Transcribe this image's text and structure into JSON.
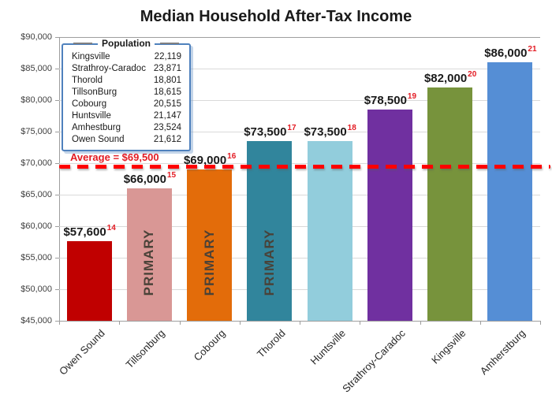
{
  "title": "Median Household After-Tax Income",
  "legend": {
    "title": "Population",
    "rows": [
      {
        "name": "Kingsville",
        "value": "22,119"
      },
      {
        "name": "Strathroy-Caradoc",
        "value": "23,871"
      },
      {
        "name": "Thorold",
        "value": "18,801"
      },
      {
        "name": "TillsonBurg",
        "value": "18,615"
      },
      {
        "name": "Cobourg",
        "value": "20,515"
      },
      {
        "name": "Huntsville",
        "value": "21,147"
      },
      {
        "name": "Amhestburg",
        "value": "23,524"
      },
      {
        "name": "Owen Sound",
        "value": "21,612"
      }
    ]
  },
  "chart_data": {
    "type": "bar",
    "title": "Median Household After-Tax Income",
    "categories": [
      "Owen Sound",
      "Tillsonburg",
      "Cobourg",
      "Thorold",
      "Huntsville",
      "Strathroy-Caradoc",
      "Kingsville",
      "Amherstburg"
    ],
    "values": [
      57600,
      66000,
      69000,
      73500,
      73500,
      78500,
      82000,
      86000
    ],
    "value_labels": [
      "$57,600",
      "$66,000",
      "$69,000",
      "$73,500",
      "$73,500",
      "$78,500",
      "$82,000",
      "$86,000"
    ],
    "footnotes": [
      "14",
      "15",
      "16",
      "17",
      "18",
      "19",
      "20",
      "21"
    ],
    "footnote_color": "#e31b23",
    "bar_colors": [
      "#c00000",
      "#d99795",
      "#e36c0a",
      "#31859c",
      "#92cddc",
      "#7030a0",
      "#77933c",
      "#558ed5"
    ],
    "primary_flags": [
      false,
      true,
      true,
      true,
      false,
      false,
      false,
      false
    ],
    "primary_text": "PRIMARY",
    "primary_text_color": "#4a4238",
    "average": {
      "label": "Average = $69,500",
      "value": 69500,
      "line_color": "#ff0000",
      "label_color": "#e31b23"
    },
    "ylim": [
      45000,
      90000
    ],
    "ytick_step": 5000,
    "ytick_format": "$#,##0",
    "grid": true,
    "legend_position": "top-left",
    "xlabel": "",
    "ylabel": ""
  }
}
